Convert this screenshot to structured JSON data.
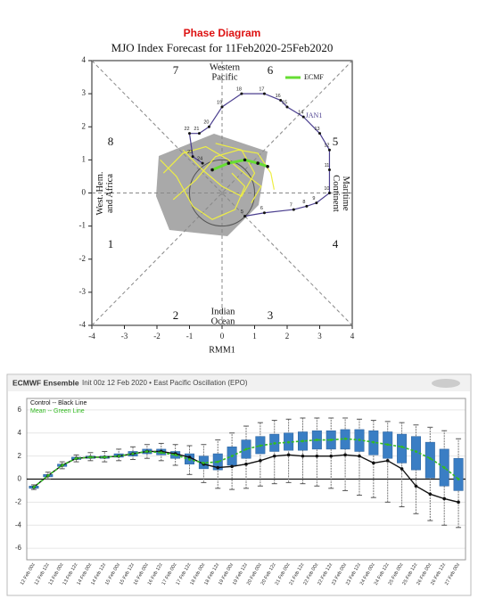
{
  "chart_data": [
    {
      "type": "phase",
      "title": "Phase Diagram",
      "subtitle": "MJO Index Forecast for 11Feb2020-25Feb2020",
      "x_label": "RMM1",
      "xlim": [
        -4,
        4
      ],
      "ylim": [
        -4,
        4
      ],
      "xticks": [
        -4,
        -3,
        -2,
        -1,
        0,
        1,
        2,
        3,
        4
      ],
      "yticks": [
        -4,
        -3,
        -2,
        -1,
        0,
        1,
        2,
        3,
        4
      ],
      "phases": [
        "1",
        "2",
        "3",
        "4",
        "5",
        "6",
        "7",
        "8"
      ],
      "regions": [
        [
          "West. Hem.",
          "and Africa"
        ],
        [
          "Western",
          "Pacific"
        ],
        [
          "Indian",
          "Ocean"
        ],
        [
          "Maritime",
          "Continent"
        ]
      ],
      "annotation": "JAN1",
      "series": [
        {
          "name": "ECMF",
          "color": "#66dd33",
          "x": [
            -0.3,
            0.2,
            0.7,
            1.1,
            1.4
          ],
          "y": [
            0.7,
            0.9,
            1.0,
            0.9,
            0.8
          ]
        },
        {
          "color": "#4b3f8f",
          "x": [
            0.7,
            1.3,
            2.2,
            2.6,
            2.9,
            3.3,
            3.3,
            3.3,
            3.0,
            2.5,
            2.0,
            1.8,
            1.3,
            0.6,
            0.0,
            -0.4,
            -0.7,
            -1.0,
            -0.9,
            -0.6
          ],
          "y": [
            -0.7,
            -0.6,
            -0.5,
            -0.4,
            -0.3,
            0.0,
            0.7,
            1.3,
            1.8,
            2.3,
            2.6,
            2.8,
            3.0,
            3.0,
            2.6,
            2.0,
            1.8,
            1.8,
            1.1,
            0.9
          ],
          "point_labels": [
            "5",
            "6",
            "7",
            "8",
            "9",
            "10",
            "11",
            "12",
            "13",
            "14",
            "15",
            "16",
            "17",
            "18",
            "19",
            "20",
            "21",
            "22",
            "23",
            "24"
          ]
        },
        {
          "color": "#eeee44",
          "x": [
            -1.8,
            -1.2,
            -0.5,
            0.2,
            0.8,
            1.2,
            0.9
          ],
          "y": [
            0.6,
            1.2,
            1.4,
            1.0,
            0.5,
            0.2,
            -0.3
          ]
        },
        {
          "color": "#eeee44",
          "x": [
            -1.5,
            -0.8,
            -0.2,
            0.5,
            1.1,
            1.5,
            1.6
          ],
          "y": [
            -0.2,
            0.4,
            1.1,
            1.3,
            1.2,
            0.6,
            0.1
          ]
        },
        {
          "color": "#eeee44",
          "x": [
            -1.9,
            -1.4,
            -0.9,
            -0.3,
            0.4,
            0.7,
            0.3
          ],
          "y": [
            1.0,
            0.5,
            -0.4,
            -0.8,
            -0.5,
            0.2,
            0.6
          ]
        },
        {
          "color": "#eeee44",
          "x": [
            -1.2,
            -0.6,
            0.0,
            0.6,
            1.0,
            0.6,
            -0.2
          ],
          "y": [
            1.3,
            0.7,
            0.2,
            -0.1,
            0.6,
            1.3,
            1.5
          ]
        }
      ]
    },
    {
      "type": "box",
      "title": "ECMWF Ensemble",
      "subtitle": "Init 00z 12 Feb 2020 • East Pacific Oscillation (EPO)",
      "ylim": [
        -7,
        7
      ],
      "yticks": [
        -6,
        -4,
        -2,
        0,
        2,
        4,
        6
      ],
      "grid": true,
      "categories": [
        "12 Feb 00z",
        "12 Feb 12z",
        "13 Feb 00z",
        "13 Feb 12z",
        "14 Feb 00z",
        "14 Feb 12z",
        "15 Feb 00z",
        "15 Feb 12z",
        "16 Feb 00z",
        "16 Feb 12z",
        "17 Feb 00z",
        "17 Feb 12z",
        "18 Feb 00z",
        "18 Feb 12z",
        "19 Feb 00z",
        "19 Feb 12z",
        "20 Feb 00z",
        "20 Feb 12z",
        "21 Feb 00z",
        "21 Feb 12z",
        "22 Feb 00z",
        "22 Feb 12z",
        "23 Feb 00z",
        "23 Feb 12z",
        "24 Feb 00z",
        "24 Feb 12z",
        "25 Feb 00z",
        "25 Feb 12z",
        "26 Feb 00z",
        "26 Feb 12z",
        "27 Feb 00z"
      ],
      "series": [
        {
          "name": "Control -- Black Line",
          "color": "#111111",
          "values": [
            -0.7,
            0.3,
            1.2,
            1.8,
            1.9,
            1.9,
            2.0,
            2.2,
            2.4,
            2.4,
            2.2,
            1.9,
            1.3,
            1.0,
            1.1,
            1.3,
            1.6,
            2.0,
            2.1,
            2.0,
            2.0,
            2.0,
            2.1,
            2.0,
            1.4,
            1.6,
            0.9,
            -0.6,
            -1.3,
            -1.7,
            -2.0
          ]
        },
        {
          "name": "Mean -- Green Line",
          "color": "#33bb22",
          "values": [
            -0.7,
            0.3,
            1.2,
            1.8,
            1.9,
            1.9,
            2.0,
            2.2,
            2.4,
            2.3,
            2.1,
            1.7,
            1.4,
            1.5,
            2.0,
            2.6,
            2.9,
            3.1,
            3.2,
            3.3,
            3.4,
            3.4,
            3.5,
            3.4,
            3.2,
            3.0,
            2.8,
            2.4,
            1.8,
            1.0,
            0.0
          ]
        }
      ],
      "box_color": "#3a7ec4",
      "q1": [
        -0.8,
        0.2,
        1.1,
        1.7,
        1.8,
        1.8,
        1.9,
        2.0,
        2.2,
        2.1,
        1.8,
        1.3,
        0.9,
        0.8,
        1.2,
        1.8,
        2.2,
        2.4,
        2.5,
        2.5,
        2.6,
        2.6,
        2.6,
        2.4,
        2.1,
        1.8,
        1.4,
        0.8,
        0.1,
        -0.6,
        -1.0
      ],
      "q3": [
        -0.6,
        0.4,
        1.3,
        1.9,
        2.0,
        2.0,
        2.2,
        2.4,
        2.6,
        2.6,
        2.4,
        2.2,
        2.0,
        2.2,
        2.8,
        3.4,
        3.7,
        3.9,
        4.0,
        4.1,
        4.2,
        4.2,
        4.3,
        4.3,
        4.2,
        4.1,
        3.9,
        3.7,
        3.2,
        2.6,
        1.8
      ],
      "whisker_low": [
        -0.9,
        0.0,
        0.9,
        1.5,
        1.6,
        1.5,
        1.6,
        1.7,
        1.8,
        1.6,
        1.2,
        0.4,
        -0.3,
        -0.8,
        -0.9,
        -0.8,
        -0.6,
        -0.4,
        -0.3,
        -0.4,
        -0.6,
        -0.8,
        -1.0,
        -1.4,
        -1.6,
        -2.0,
        -2.4,
        -3.0,
        -3.6,
        -4.0,
        -4.2
      ],
      "whisker_high": [
        -0.5,
        0.6,
        1.5,
        2.1,
        2.3,
        2.4,
        2.6,
        2.8,
        3.0,
        3.1,
        3.0,
        2.9,
        3.0,
        3.4,
        4.0,
        4.6,
        4.9,
        5.1,
        5.2,
        5.3,
        5.3,
        5.3,
        5.3,
        5.2,
        5.1,
        5.0,
        4.9,
        4.7,
        4.5,
        4.2,
        3.5
      ]
    }
  ]
}
